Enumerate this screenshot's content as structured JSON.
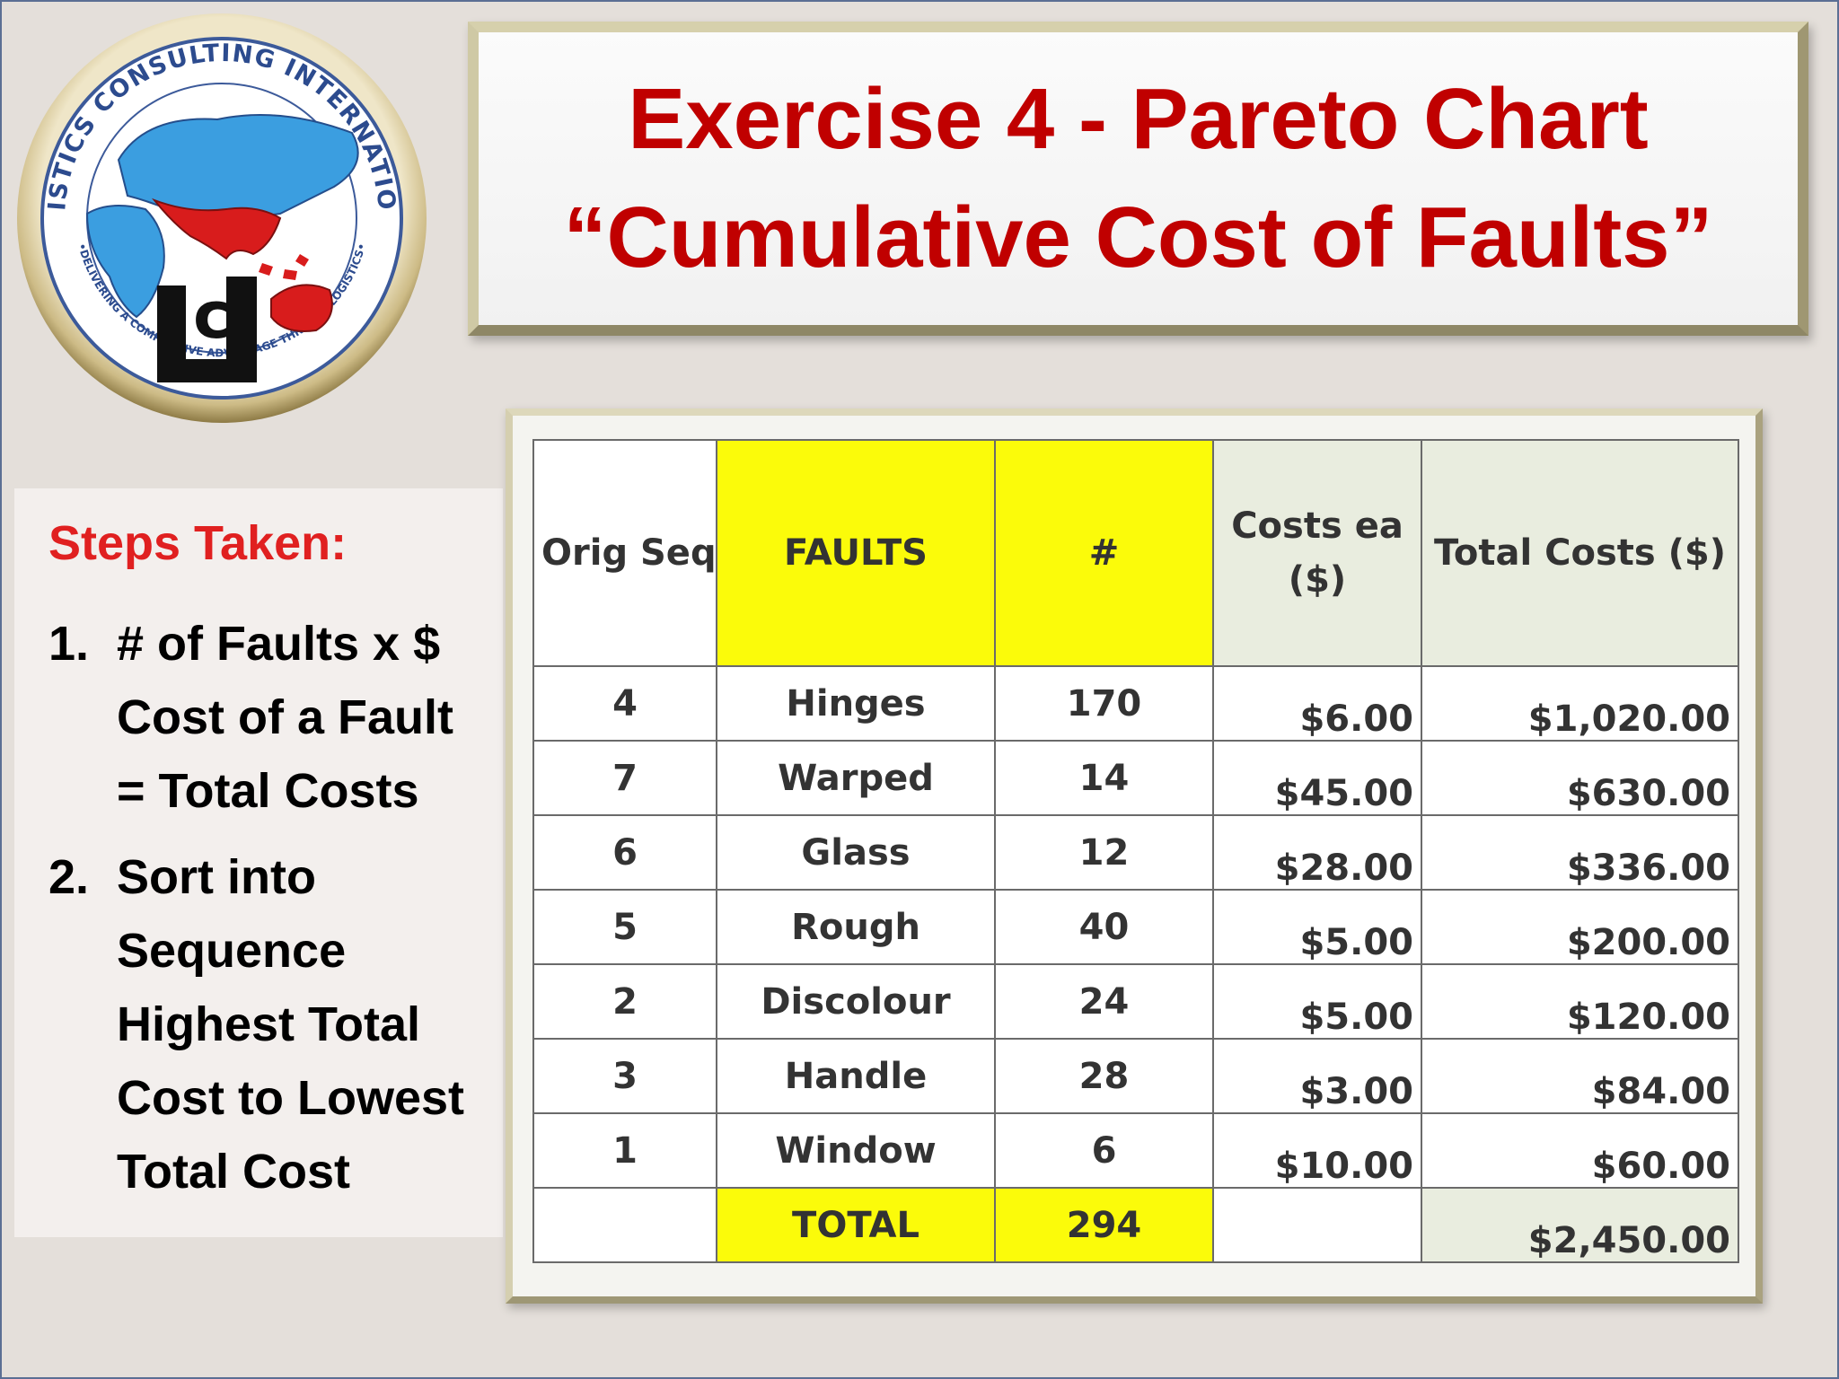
{
  "title": {
    "line1": "Exercise 4 - Pareto Chart",
    "line2": "“Cumulative Cost of Faults”",
    "color": "#c00000"
  },
  "logo": {
    "ring_text_top": "LOGISTICS CONSULTING INTERNATIONAL",
    "ring_text_bottom": "•DELIVERING A COMPETITIVE ADVANTAGE THROUGH LOGISTICS•",
    "monogram": "LCI"
  },
  "steps": {
    "heading": "Steps Taken:",
    "items": [
      {
        "num": "1.",
        "lines": [
          "# of Faults x $",
          "Cost of a Fault",
          "= Total Costs"
        ]
      },
      {
        "num": "2.",
        "lines": [
          "Sort into",
          "Sequence",
          "Highest Total",
          "Cost to Lowest",
          "Total Cost"
        ]
      }
    ]
  },
  "table": {
    "headers": {
      "orig_seq": "Orig Seq",
      "faults": "FAULTS",
      "count": "#",
      "cost_each_line1": "Costs ea",
      "cost_each_line2": "($)",
      "total_costs": "Total Costs ($)"
    },
    "rows": [
      {
        "orig_seq": "4",
        "fault": "Hinges",
        "count": "170",
        "cost_each": "$6.00",
        "total": "$1,020.00"
      },
      {
        "orig_seq": "7",
        "fault": "Warped",
        "count": "14",
        "cost_each": "$45.00",
        "total": "$630.00"
      },
      {
        "orig_seq": "6",
        "fault": "Glass",
        "count": "12",
        "cost_each": "$28.00",
        "total": "$336.00"
      },
      {
        "orig_seq": "5",
        "fault": "Rough",
        "count": "40",
        "cost_each": "$5.00",
        "total": "$200.00"
      },
      {
        "orig_seq": "2",
        "fault": "Discolour",
        "count": "24",
        "cost_each": "$5.00",
        "total": "$120.00"
      },
      {
        "orig_seq": "3",
        "fault": "Handle",
        "count": "28",
        "cost_each": "$3.00",
        "total": "$84.00"
      },
      {
        "orig_seq": "1",
        "fault": "Window",
        "count": "6",
        "cost_each": "$10.00",
        "total": "$60.00"
      }
    ],
    "total_row": {
      "label": "TOTAL",
      "count": "294",
      "total": "$2,450.00"
    },
    "colors": {
      "highlight": "#fbfb0a",
      "light_green": "#e9eddf"
    }
  }
}
